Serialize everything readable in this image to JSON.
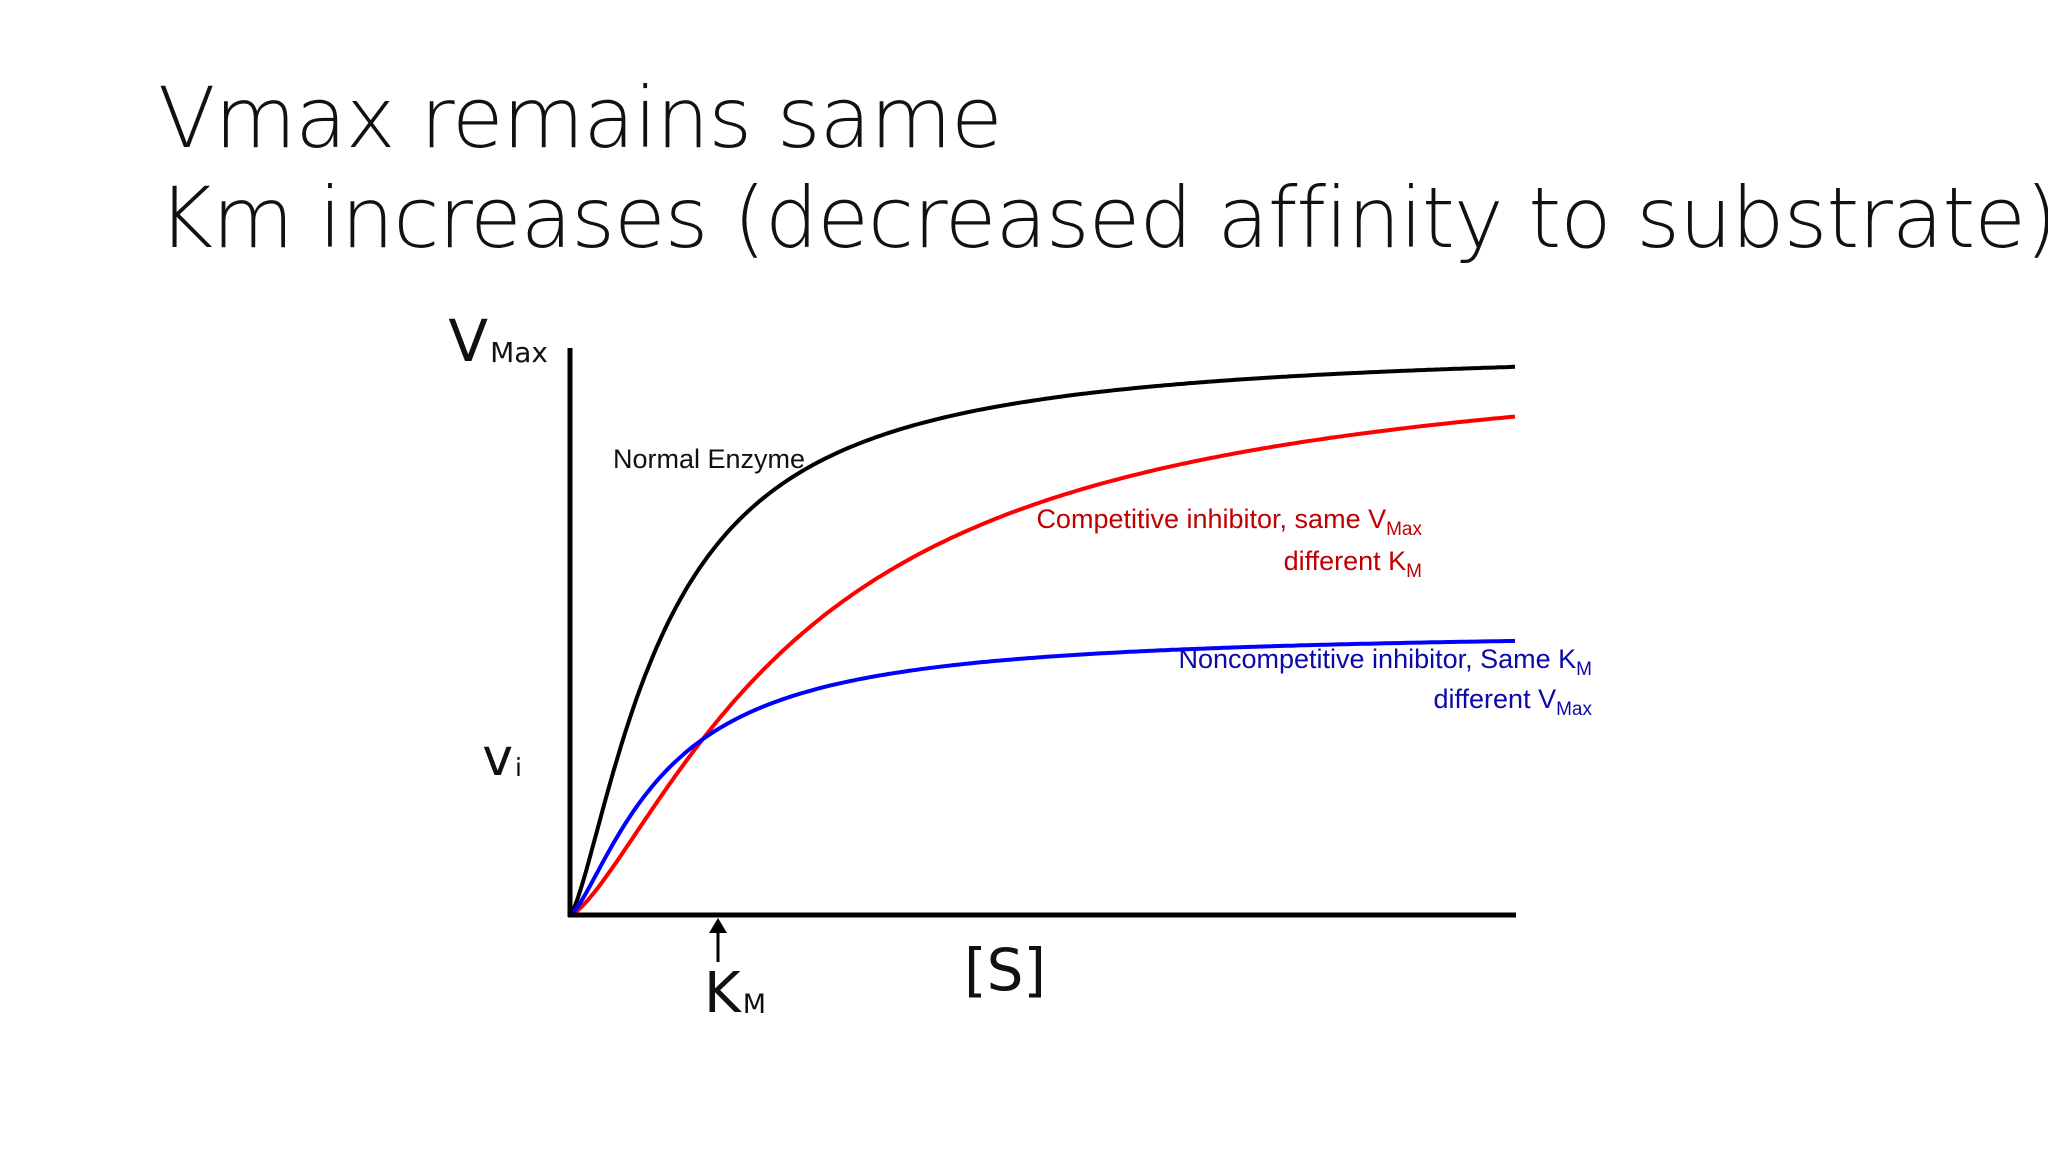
{
  "slide": {
    "title_line1": "Vmax remains same",
    "title_line2": "Km increases (decreased affinity to substrate)"
  },
  "chart_data": {
    "type": "line",
    "title": "",
    "xlabel": "[S]",
    "ylabel": "",
    "y_marks": [
      {
        "main": "V",
        "sub": "Max",
        "value": 1.0
      },
      {
        "main": "v",
        "sub": "i",
        "value": 0.5
      }
    ],
    "x_marks": [
      {
        "main": "K",
        "sub": "M",
        "value": 1.0
      }
    ],
    "xlim": [
      0,
      10
    ],
    "ylim": [
      0,
      1.0
    ],
    "grid": false,
    "legend": "none",
    "series": [
      {
        "name": "Normal Enzyme",
        "color": "#000000",
        "vmax": 1.0,
        "km": 1.0
      },
      {
        "name": "Competitive inhibitor",
        "color": "#ff0000",
        "vmax": 1.0,
        "km": 2.5
      },
      {
        "name": "Noncompetitive inhibitor",
        "color": "#0000ff",
        "vmax": 0.5,
        "km": 1.0
      }
    ],
    "annotations": [
      {
        "id": "normal",
        "color": "#111111",
        "lines": [
          [
            {
              "t": "Normal Enzyme"
            }
          ]
        ]
      },
      {
        "id": "competitive",
        "color": "#c00000",
        "lines": [
          [
            {
              "t": "Competitive inhibitor,  same V"
            },
            {
              "t": "Max",
              "sub": true
            }
          ],
          [
            {
              "t": "different K"
            },
            {
              "t": "M",
              "sub": true
            }
          ]
        ]
      },
      {
        "id": "noncompetitive",
        "color": "#0a0aaa",
        "lines": [
          [
            {
              "t": "Noncompetitive inhibitor,  Same K"
            },
            {
              "t": "M",
              "sub": true
            }
          ],
          [
            {
              "t": "different V"
            },
            {
              "t": "Max",
              "sub": true
            }
          ]
        ]
      }
    ]
  }
}
